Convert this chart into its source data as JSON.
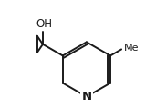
{
  "bg_color": "#ffffff",
  "line_color": "#1a1a1a",
  "line_width": 1.4,
  "font_size": 8.5,
  "OH_label": "OH",
  "N_label": "N",
  "figsize": [
    1.82,
    1.18
  ],
  "dpi": 100
}
